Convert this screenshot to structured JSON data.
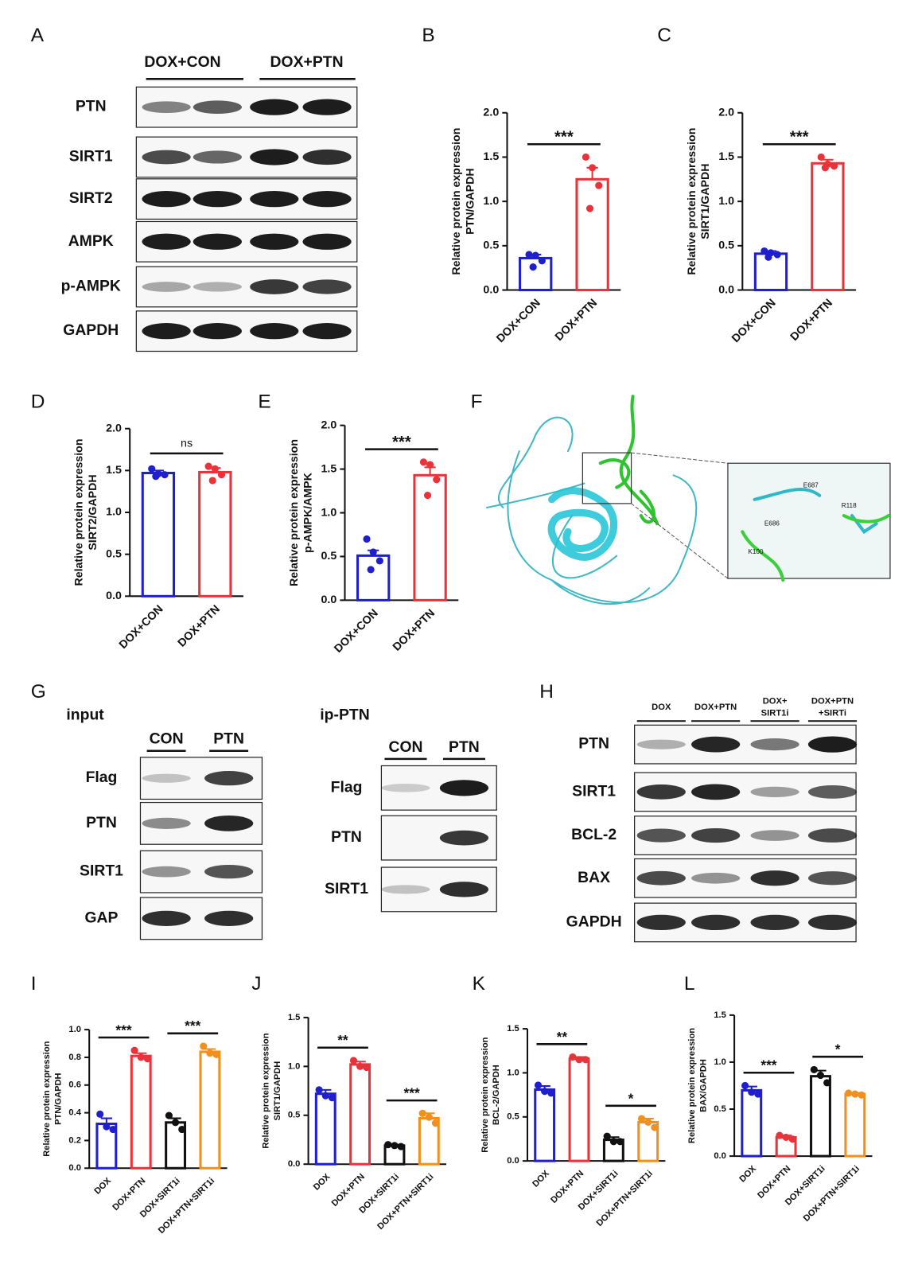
{
  "blot_A": {
    "label": "A",
    "groups": [
      "DOX+CON",
      "DOX+PTN"
    ],
    "rows": [
      "PTN",
      "SIRT1",
      "SIRT2",
      "AMPK",
      "p-AMPK",
      "GAPDH"
    ]
  },
  "structure_F": {
    "label": "F",
    "residues": [
      "E687",
      "R118",
      "E686",
      "K100"
    ]
  },
  "blot_G": {
    "label": "G",
    "input": {
      "title": "input",
      "lanes": [
        "CON",
        "PTN"
      ],
      "rows": [
        "Flag",
        "PTN",
        "SIRT1",
        "GAP"
      ]
    },
    "ip": {
      "title": "ip-PTN",
      "lanes": [
        "CON",
        "PTN"
      ],
      "rows": [
        "Flag",
        "PTN",
        "SIRT1"
      ]
    }
  },
  "blot_H": {
    "label": "H",
    "lanes": [
      [
        "DOX"
      ],
      [
        "DOX+PTN"
      ],
      [
        "DOX+",
        "SIRT1i"
      ],
      [
        "DOX+PTN",
        "+SIRTi"
      ]
    ],
    "rows": [
      "PTN",
      "SIRT1",
      "BCL-2",
      "BAX",
      "GAPDH"
    ]
  },
  "chart_data": [
    {
      "type": "bar",
      "label": "B",
      "ylabel": [
        "Relative protein expression",
        "PTN/GAPDH"
      ],
      "categories": [
        "DOX+CON",
        "DOX+PTN"
      ],
      "colors": [
        "#1f1fd0",
        "#e8333a"
      ],
      "values": [
        0.36,
        1.25
      ],
      "errors": [
        0.04,
        0.13
      ],
      "points": [
        [
          0.4,
          0.39,
          0.33,
          0.26
        ],
        [
          1.5,
          1.38,
          1.18,
          0.92
        ]
      ],
      "ylim": [
        0,
        2.0
      ],
      "yticks": [
        {
          "value": 0,
          "label": "0.0"
        },
        {
          "value": 0.5,
          "label": "0.5"
        },
        {
          "value": 1,
          "label": "1.0"
        },
        {
          "value": 1.5,
          "label": "1.5"
        },
        {
          "value": 2,
          "label": "2.0"
        }
      ],
      "significance": [
        {
          "text": "***",
          "between": [
            0,
            1
          ]
        }
      ]
    },
    {
      "type": "bar",
      "label": "C",
      "ylabel": [
        "Relative protein expression",
        "SIRT1/GAPDH"
      ],
      "categories": [
        "DOX+CON",
        "DOX+PTN"
      ],
      "colors": [
        "#1f1fd0",
        "#e8333a"
      ],
      "values": [
        0.41,
        1.43
      ],
      "errors": [
        0.03,
        0.04
      ],
      "points": [
        [
          0.44,
          0.42,
          0.4,
          0.37
        ],
        [
          1.5,
          1.42,
          1.4,
          1.38
        ]
      ],
      "ylim": [
        0,
        2.0
      ],
      "yticks": [
        {
          "value": 0,
          "label": "0.0"
        },
        {
          "value": 0.5,
          "label": "0.5"
        },
        {
          "value": 1,
          "label": "1.0"
        },
        {
          "value": 1.5,
          "label": "1.5"
        },
        {
          "value": 2,
          "label": "2.0"
        }
      ],
      "significance": [
        {
          "text": "***",
          "between": [
            0,
            1
          ]
        }
      ]
    },
    {
      "type": "bar",
      "label": "D",
      "ylabel": [
        "Relative protein expression",
        "SIRT2/GAPDH"
      ],
      "categories": [
        "DOX+CON",
        "DOX+PTN"
      ],
      "colors": [
        "#1f1fd0",
        "#e8333a"
      ],
      "values": [
        1.47,
        1.48
      ],
      "errors": [
        0.03,
        0.05
      ],
      "points": [
        [
          1.52,
          1.46,
          1.45,
          1.43
        ],
        [
          1.55,
          1.52,
          1.45,
          1.38
        ]
      ],
      "ylim": [
        0,
        2.0
      ],
      "yticks": [
        {
          "value": 0,
          "label": "0.0"
        },
        {
          "value": 0.5,
          "label": "0.5"
        },
        {
          "value": 1,
          "label": "1.0"
        },
        {
          "value": 1.5,
          "label": "1.5"
        },
        {
          "value": 2,
          "label": "2.0"
        }
      ],
      "significance": [
        {
          "text": "ns",
          "between": [
            0,
            1
          ]
        }
      ]
    },
    {
      "type": "bar",
      "label": "E",
      "ylabel": [
        "Relative protein expression",
        "p-AMPK/AMPK"
      ],
      "categories": [
        "DOX+CON",
        "DOX+PTN"
      ],
      "colors": [
        "#1f1fd0",
        "#e8333a"
      ],
      "values": [
        0.51,
        1.43
      ],
      "errors": [
        0.06,
        0.09
      ],
      "points": [
        [
          0.7,
          0.55,
          0.45,
          0.35
        ],
        [
          1.58,
          1.55,
          1.38,
          1.2
        ]
      ],
      "ylim": [
        0,
        2.0
      ],
      "yticks": [
        {
          "value": 0,
          "label": "0.0"
        },
        {
          "value": 0.5,
          "label": "0.5"
        },
        {
          "value": 1,
          "label": "1.0"
        },
        {
          "value": 1.5,
          "label": "1.5"
        },
        {
          "value": 2,
          "label": "2.0"
        }
      ],
      "significance": [
        {
          "text": "***",
          "between": [
            0,
            1
          ]
        }
      ]
    },
    {
      "type": "bar",
      "label": "I",
      "ylabel": [
        "Relative protein expression",
        "PTN/GAPDH"
      ],
      "categories": [
        "DOX",
        "DOX+PTN",
        "DOX+SIRT1i",
        "DOX+PTN+SIRT1i"
      ],
      "colors": [
        "#1f1fd0",
        "#e8333a",
        "#111111",
        "#f0901e"
      ],
      "values": [
        0.32,
        0.81,
        0.33,
        0.84
      ],
      "errors": [
        0.04,
        0.02,
        0.03,
        0.02
      ],
      "points": [
        [
          0.39,
          0.3,
          0.28
        ],
        [
          0.85,
          0.8,
          0.79
        ],
        [
          0.38,
          0.33,
          0.28
        ],
        [
          0.88,
          0.83,
          0.82
        ]
      ],
      "ylim": [
        0,
        1.0
      ],
      "yticks": [
        {
          "value": 0,
          "label": "0.0"
        },
        0.2,
        0.4,
        0.6,
        0.8,
        {
          "value": 1,
          "label": "1.0"
        }
      ],
      "significance": [
        {
          "text": "***",
          "between": [
            0,
            1
          ]
        },
        {
          "text": "***",
          "between": [
            2,
            3
          ]
        }
      ]
    },
    {
      "type": "bar",
      "label": "J",
      "ylabel": [
        "Relative protein expression",
        "SIRT1/GAPDH"
      ],
      "categories": [
        "DOX",
        "DOX+PTN",
        "DOX+SIRT1i",
        "DOX+PTN+SIRT1i"
      ],
      "colors": [
        "#1f1fd0",
        "#e8333a",
        "#111111",
        "#f0901e"
      ],
      "values": [
        0.72,
        1.02,
        0.19,
        0.47
      ],
      "errors": [
        0.04,
        0.03,
        0.01,
        0.05
      ],
      "points": [
        [
          0.76,
          0.7,
          0.68
        ],
        [
          1.06,
          1.0,
          0.99
        ],
        [
          0.2,
          0.19,
          0.18
        ],
        [
          0.52,
          0.48,
          0.42
        ]
      ],
      "ylim": [
        0,
        1.5
      ],
      "yticks": [
        {
          "value": 0,
          "label": "0.0"
        },
        0.5,
        {
          "value": 1,
          "label": "1.0"
        },
        1.5
      ],
      "significance": [
        {
          "text": "**",
          "between": [
            0,
            1
          ]
        },
        {
          "text": "***",
          "between": [
            2,
            3
          ]
        }
      ]
    },
    {
      "type": "bar",
      "label": "K",
      "ylabel": [
        "Relative protein expression",
        "BCL-2/GAPDH"
      ],
      "categories": [
        "DOX",
        "DOX+PTN",
        "DOX+SIRT1i",
        "DOX+PTN+SIRT1i"
      ],
      "colors": [
        "#1f1fd0",
        "#e8333a",
        "#111111",
        "#f0901e"
      ],
      "values": [
        0.81,
        1.16,
        0.24,
        0.44
      ],
      "errors": [
        0.04,
        0.02,
        0.03,
        0.04
      ],
      "points": [
        [
          0.86,
          0.79,
          0.77
        ],
        [
          1.18,
          1.15,
          1.15
        ],
        [
          0.28,
          0.22,
          0.22
        ],
        [
          0.48,
          0.44,
          0.38
        ]
      ],
      "ylim": [
        0,
        1.5
      ],
      "yticks": [
        {
          "value": 0,
          "label": "0.0"
        },
        0.5,
        {
          "value": 1,
          "label": "1.0"
        },
        1.5
      ],
      "significance": [
        {
          "text": "**",
          "between": [
            0,
            1
          ]
        },
        {
          "text": "*",
          "between": [
            2,
            3
          ]
        }
      ]
    },
    {
      "type": "bar",
      "label": "L",
      "ylabel": [
        "Relative protein expression",
        "BAX/GAPDH"
      ],
      "categories": [
        "DOX",
        "DOX+PTN",
        "DOX+SIRT1i",
        "DOX+PTN+SIRT1i"
      ],
      "colors": [
        "#1f1fd0",
        "#e8333a",
        "#111111",
        "#f0901e"
      ],
      "values": [
        0.7,
        0.2,
        0.85,
        0.66
      ],
      "errors": [
        0.04,
        0.02,
        0.06,
        0.01
      ],
      "points": [
        [
          0.75,
          0.68,
          0.66
        ],
        [
          0.22,
          0.2,
          0.18
        ],
        [
          0.92,
          0.86,
          0.78
        ],
        [
          0.67,
          0.66,
          0.65
        ]
      ],
      "ylim": [
        0,
        1.5
      ],
      "yticks": [
        {
          "value": 0,
          "label": "0.0"
        },
        0.5,
        {
          "value": 1,
          "label": "1.0"
        },
        1.5
      ],
      "significance": [
        {
          "text": "***",
          "between": [
            0,
            1
          ]
        },
        {
          "text": "*",
          "between": [
            2,
            3
          ]
        }
      ]
    }
  ]
}
